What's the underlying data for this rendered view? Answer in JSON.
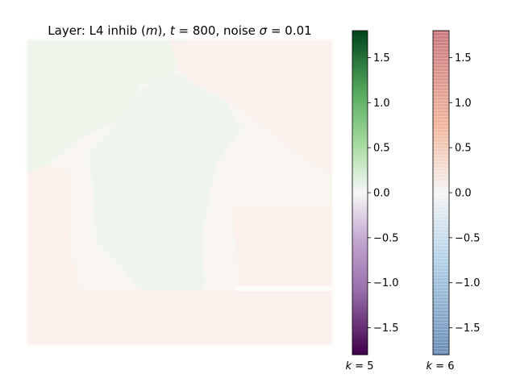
{
  "chart_data": {
    "type": "heatmap",
    "title": "Layer: L4 inhib (m), t = 800, noise σ = 0.01",
    "title_parts": {
      "prefix": "Layer: L4 inhib (",
      "m": "m",
      "mid1": "), ",
      "t": "t",
      "eq1": " = 800, noise ",
      "sigma": "σ",
      "eq2": " = 0.01"
    },
    "axes_visible": false,
    "value_range": [
      -1.8,
      1.8
    ],
    "heatmap_regions": [
      {
        "name": "upper-left",
        "value": 0.06,
        "color": "#eef5eb"
      },
      {
        "name": "upper-right",
        "value": -0.04,
        "color": "#fbf1ed"
      },
      {
        "name": "middle-left",
        "value": -0.03,
        "color": "#fcf1ec"
      },
      {
        "name": "central-plume",
        "value": 0.08,
        "color": "#eef5ec"
      },
      {
        "name": "lower-right",
        "value": -0.03,
        "color": "#fcf1ec"
      },
      {
        "name": "bottom-strip",
        "value": -0.02,
        "color": "#fbf1ed"
      }
    ],
    "colorbars": [
      {
        "name": "k=5",
        "colormap": "PRGn",
        "label_k": "k",
        "label_value": " = 5",
        "range": [
          -1.8,
          1.8
        ],
        "ticks": [
          -1.5,
          -1.0,
          -0.5,
          0.0,
          0.5,
          1.0,
          1.5
        ],
        "tick_labels": [
          "−1.5",
          "−1.0",
          "−0.5",
          "0.0",
          "0.5",
          "1.0",
          "1.5"
        ],
        "colors": {
          "low": "#40004b",
          "mid_low": "#c2a5cf",
          "center": "#f7f7f7",
          "mid_high": "#a6dba0",
          "high": "#00441b"
        }
      },
      {
        "name": "k=6",
        "colormap": "RdBu_r (alpha)",
        "label_k": "k",
        "label_value": " = 6",
        "range": [
          -1.8,
          1.8
        ],
        "ticks": [
          -1.5,
          -1.0,
          -0.5,
          0.0,
          0.5,
          1.0,
          1.5
        ],
        "tick_labels": [
          "−1.5",
          "−1.0",
          "−0.5",
          "0.0",
          "0.5",
          "1.0",
          "1.5"
        ],
        "colors": {
          "low": "#6b8fb7",
          "mid_low": "#b6d3e8",
          "center": "#f5f5f5",
          "mid_high": "#f2b9a0",
          "high": "#c97a80"
        }
      }
    ]
  }
}
